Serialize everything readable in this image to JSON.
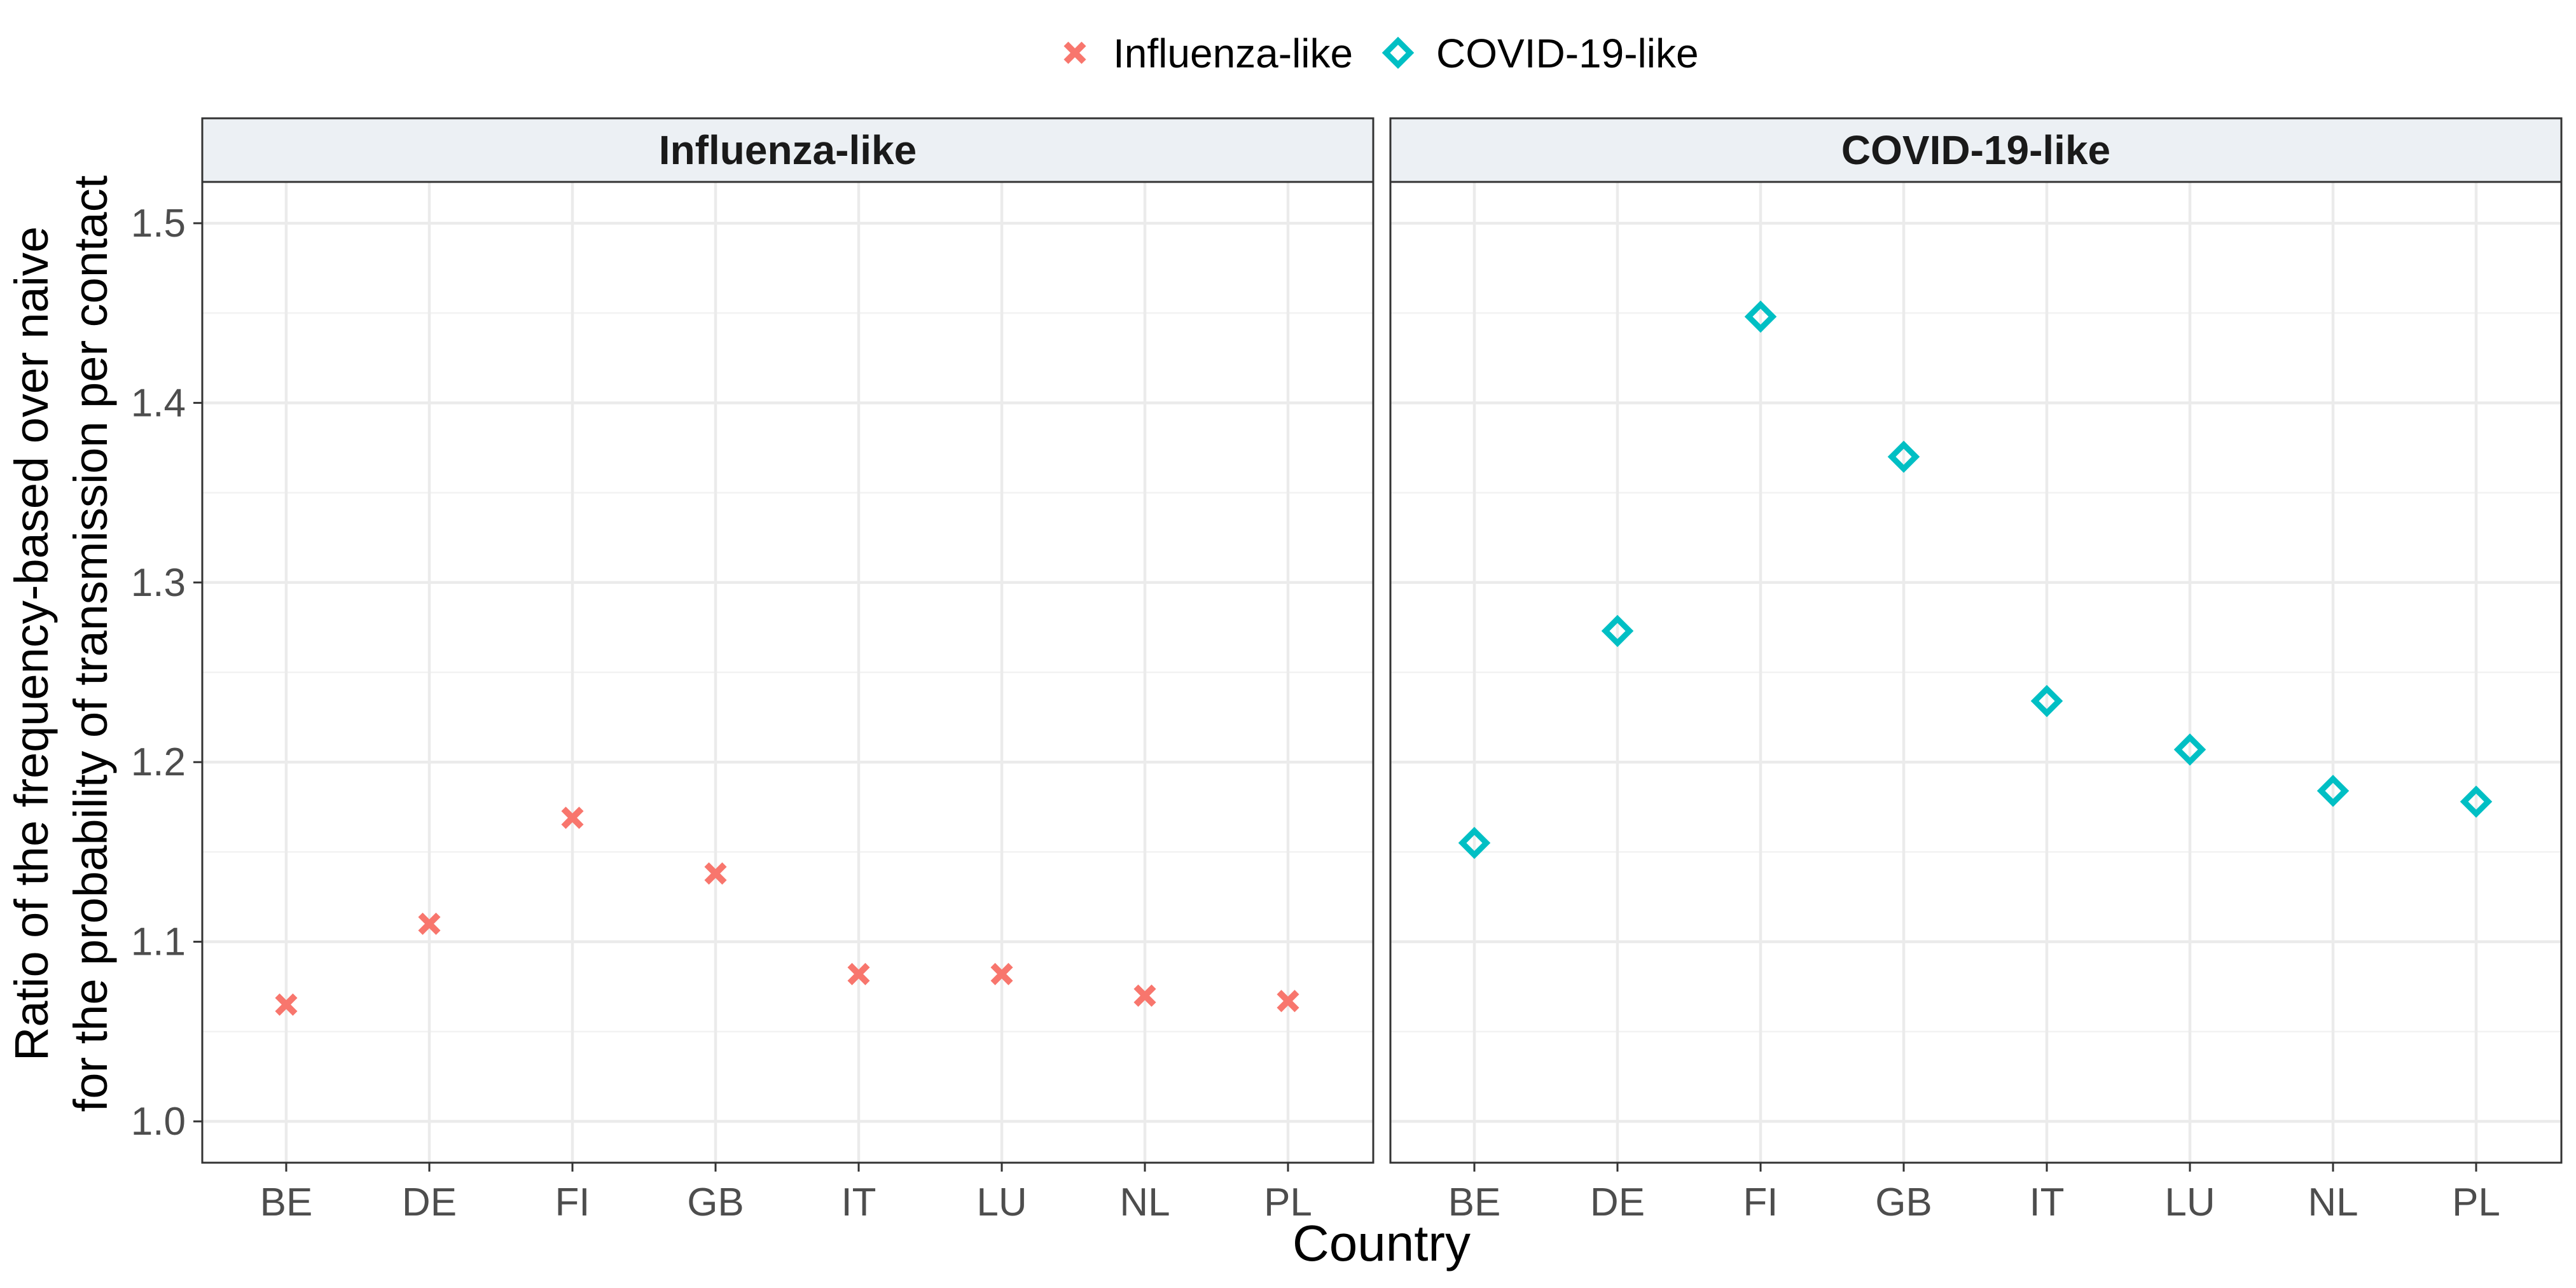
{
  "chart_data": {
    "type": "scatter",
    "xlabel": "Country",
    "ylabel_lines": [
      "Ratio of the frequency-based over naive",
      "for the probability of transmission per contact"
    ],
    "categories": [
      "BE",
      "DE",
      "FI",
      "GB",
      "IT",
      "LU",
      "NL",
      "PL"
    ],
    "ylim": [
      0.977,
      1.523
    ],
    "yticks": [
      1.0,
      1.1,
      1.2,
      1.3,
      1.4,
      1.5
    ],
    "ytick_labels": [
      "1.0",
      "1.1",
      "1.2",
      "1.3",
      "1.4",
      "1.5"
    ],
    "grid": true,
    "legend_position": "top",
    "legend": [
      {
        "label": "Influenza-like",
        "marker": "cross",
        "color": "#F8766D"
      },
      {
        "label": "COVID-19-like",
        "marker": "diamond",
        "color": "#00BFC4"
      }
    ],
    "panels": [
      {
        "title": "Influenza-like",
        "marker": "cross",
        "color": "#F8766D",
        "values": [
          1.065,
          1.11,
          1.169,
          1.138,
          1.082,
          1.082,
          1.07,
          1.067
        ]
      },
      {
        "title": "COVID-19-like",
        "marker": "diamond",
        "color": "#00BFC4",
        "values": [
          1.155,
          1.273,
          1.448,
          1.37,
          1.234,
          1.207,
          1.184,
          1.178
        ]
      }
    ]
  }
}
